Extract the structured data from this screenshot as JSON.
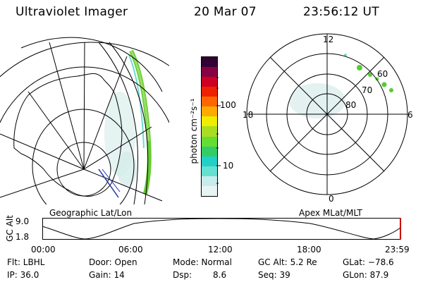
{
  "header": {
    "title": "Ultraviolet Imager",
    "date": "20 Mar 07",
    "time": "23:56:12 UT"
  },
  "geo_panel": {
    "label": "Geographic Lat/Lon"
  },
  "colorbar": {
    "unit_label": "photon cm⁻²s⁻¹",
    "ticks": [
      "100",
      "10"
    ],
    "colors": [
      "#e8f4f4",
      "#c8ecec",
      "#66e0d0",
      "#22d0c8",
      "#33cc66",
      "#66dd33",
      "#aadd22",
      "#eeee00",
      "#ffaa00",
      "#ff6600",
      "#ee2200",
      "#cc0022",
      "#880044",
      "#330033"
    ]
  },
  "polar_panel": {
    "label": "Apex MLat/MLT",
    "mlt_labels": {
      "top": "12",
      "left": "18",
      "right": "6",
      "bottom": "0"
    },
    "lat_labels": [
      "60",
      "70",
      "80"
    ]
  },
  "altitude_plot": {
    "y_label": "GC Alt",
    "y_ticks": [
      "9.0",
      "1.8"
    ],
    "x_ticks": [
      "00:00",
      "06:00",
      "12:00",
      "18:00",
      "23:59"
    ],
    "marker_color": "#cc0000"
  },
  "info": {
    "filter": "Flt: LBHL",
    "ip": "IP: 36.0",
    "door": "Door: Open",
    "gain": "Gain: 14",
    "mode": "Mode: Normal",
    "dsp_label": "Dsp:",
    "dsp_value": "8.6",
    "gc_alt": "GC Alt: 5.2 Re",
    "seq": "Seq: 39",
    "glat": "GLat: −78.6",
    "glon": "GLon: 87.9"
  }
}
